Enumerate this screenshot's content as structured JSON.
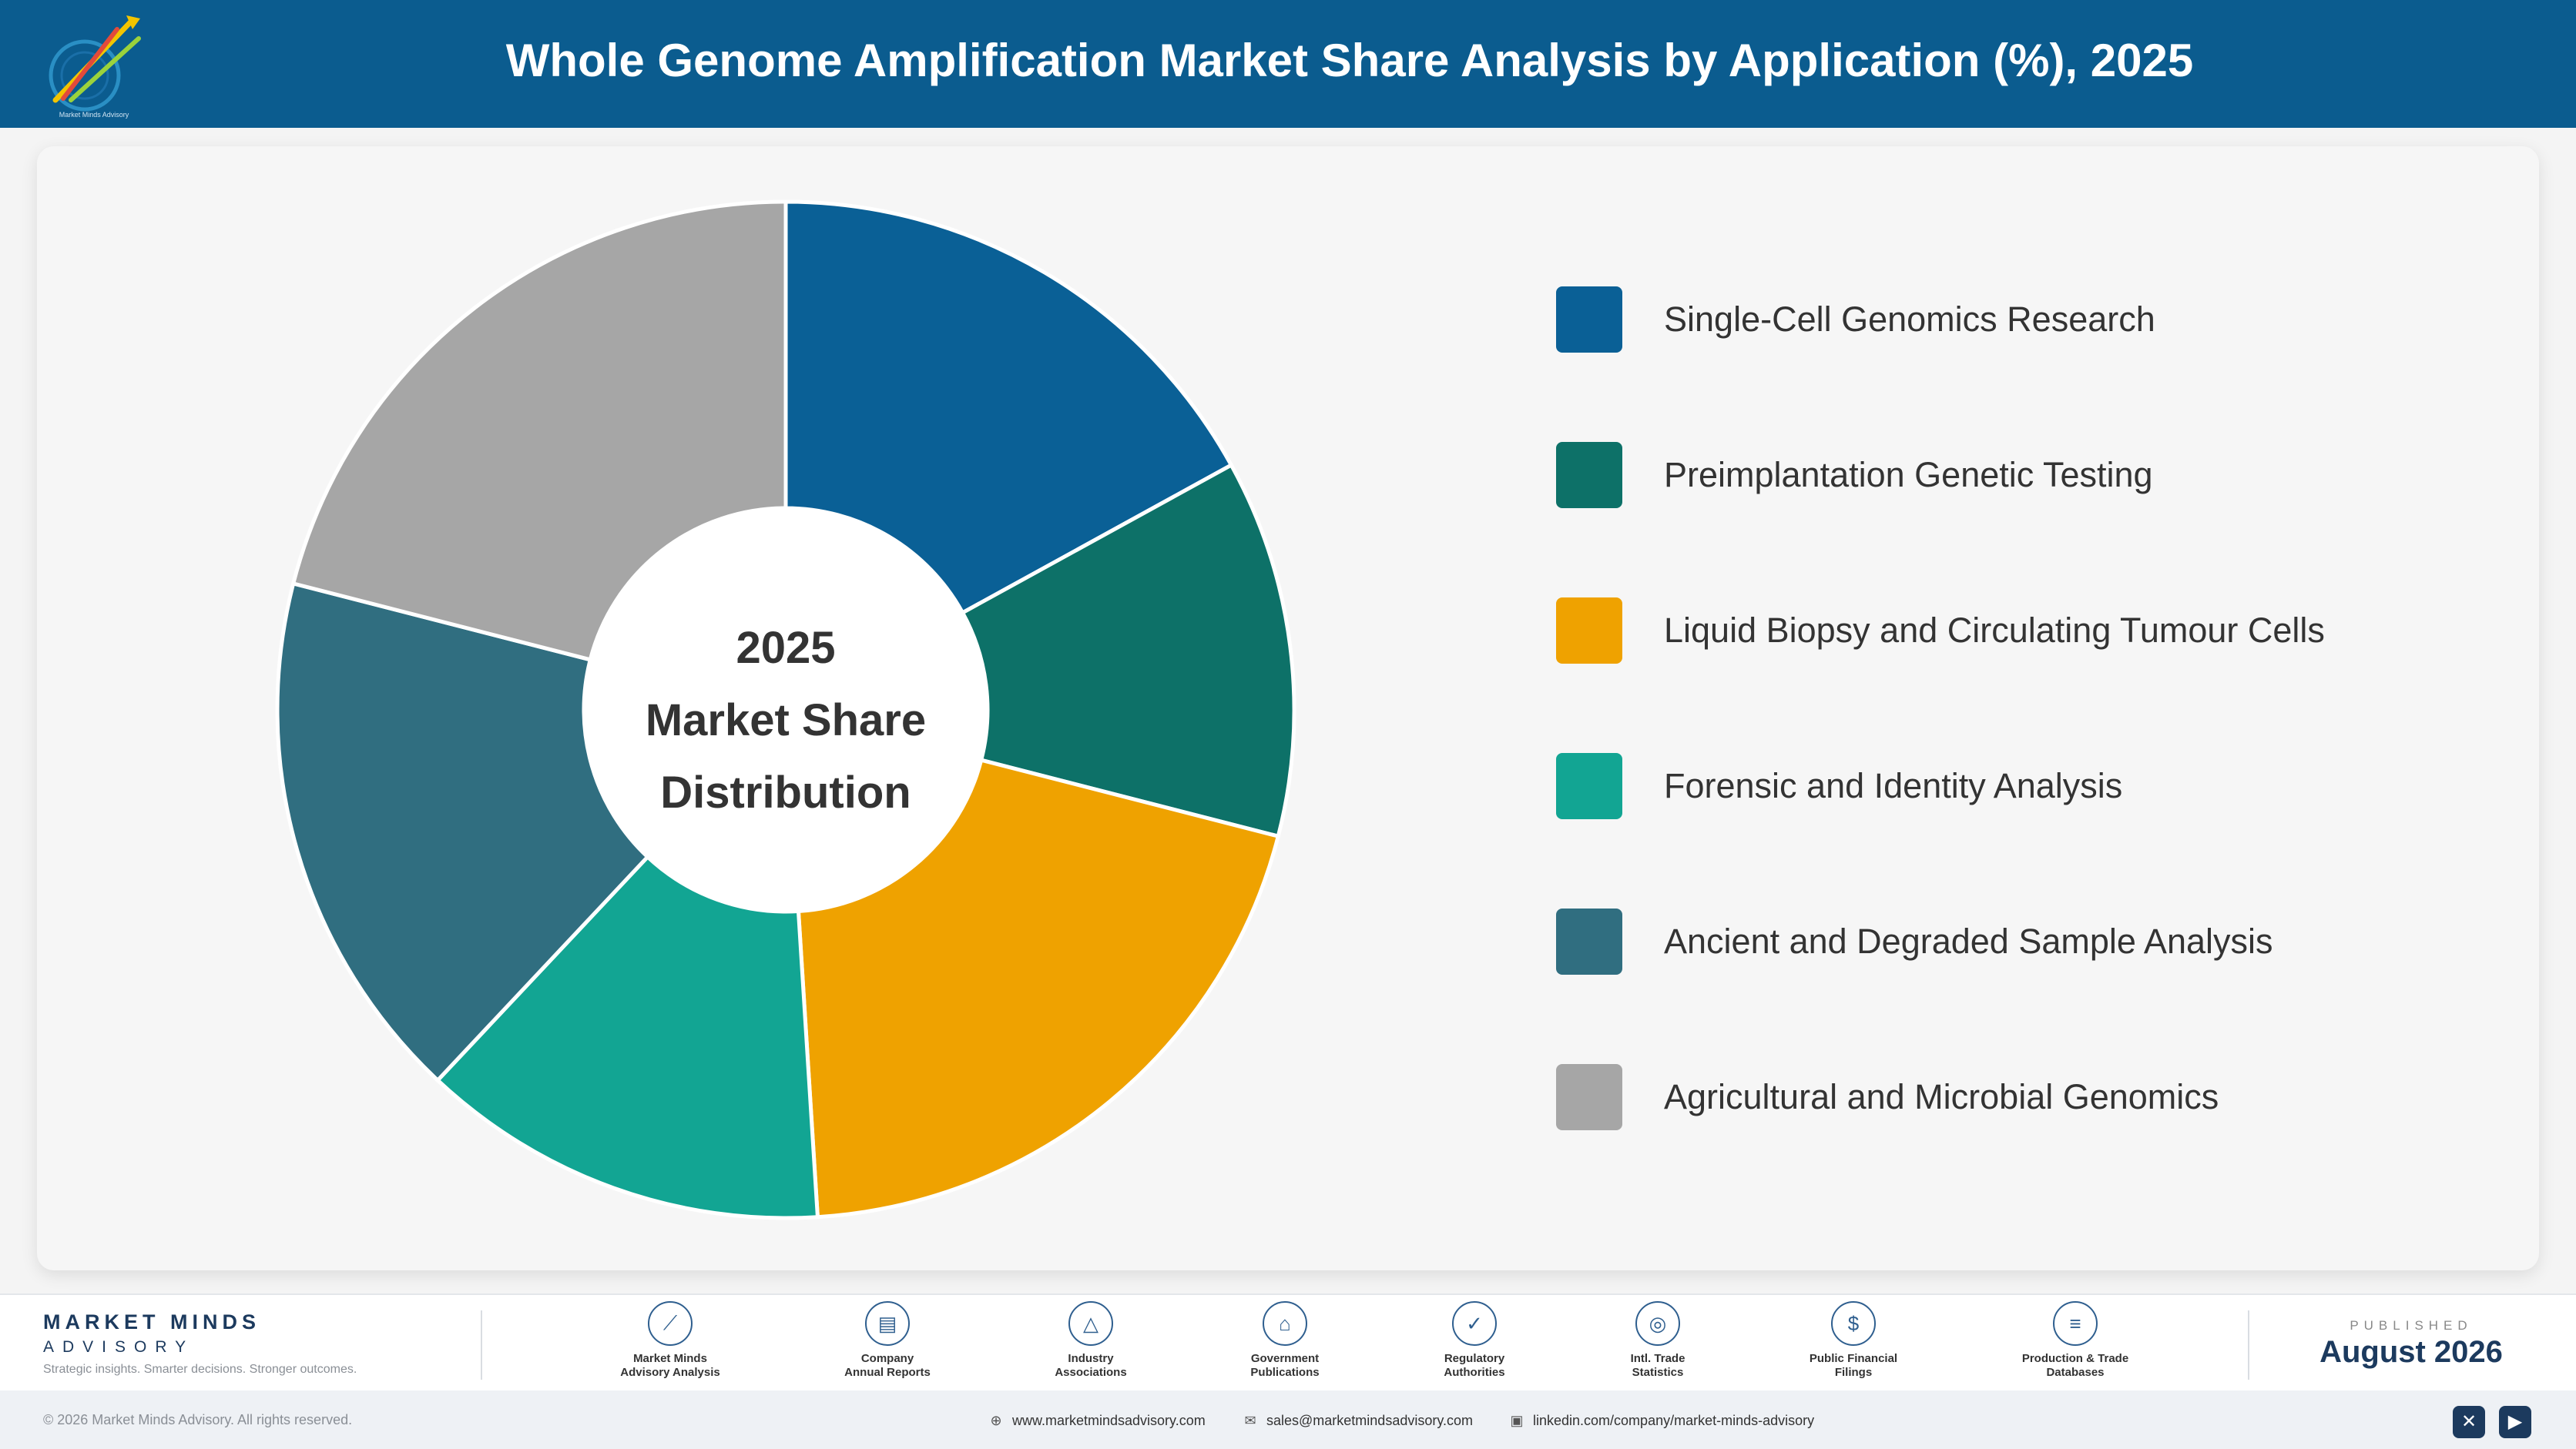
{
  "header": {
    "title": "Whole Genome Amplification Market Share Analysis by Application (%), 2025",
    "logo_icon": "market-minds-logo-icon",
    "background": "#0b5c8f"
  },
  "chart_data": {
    "type": "pie",
    "donut": true,
    "center_text": [
      "2025",
      "Market Share",
      "Distribution"
    ],
    "title": "Whole Genome Amplification Market Share Analysis by Application (%), 2025",
    "categories": [
      "Single-Cell Genomics Research",
      "Preimplantation Genetic Testing",
      "Liquid Biopsy and Circulating Tumour Cells",
      "Forensic and Identity Analysis",
      "Ancient and Degraded Sample Analysis",
      "Agricultural and Microbial Genomics"
    ],
    "values": [
      17,
      12,
      20,
      13,
      17,
      21
    ],
    "colors": [
      "#0a6096",
      "#0d7168",
      "#efa200",
      "#12a593",
      "#306e80",
      "#a6a6a6"
    ],
    "legend_position": "right"
  },
  "footer": {
    "brand_name": "MARKET MINDS",
    "brand_sub": "ADVISORY",
    "tagline": "Strategic insights. Smarter decisions. Stronger outcomes.",
    "sources": [
      {
        "icon": "trend-chart-icon",
        "line1": "Market Minds",
        "line2": "Advisory Analysis"
      },
      {
        "icon": "document-icon",
        "line1": "Company",
        "line2": "Annual Reports"
      },
      {
        "icon": "network-icon",
        "line1": "Industry",
        "line2": "Associations"
      },
      {
        "icon": "government-building-icon",
        "line1": "Government",
        "line2": "Publications"
      },
      {
        "icon": "shield-check-icon",
        "line1": "Regulatory",
        "line2": "Authorities"
      },
      {
        "icon": "globe-icon",
        "line1": "Intl. Trade",
        "line2": "Statistics"
      },
      {
        "icon": "dollar-coin-icon",
        "line1": "Public Financial",
        "line2": "Filings"
      },
      {
        "icon": "database-icon",
        "line1": "Production & Trade",
        "line2": "Databases"
      }
    ],
    "published_label": "PUBLISHED",
    "published_date": "August 2026"
  },
  "bottombar": {
    "copyright": "© 2026 Market Minds Advisory. All rights reserved.",
    "website": "www.marketmindsadvisory.com",
    "email": "sales@marketmindsadvisory.com",
    "linkedin": "linkedin.com/company/market-minds-advisory"
  }
}
